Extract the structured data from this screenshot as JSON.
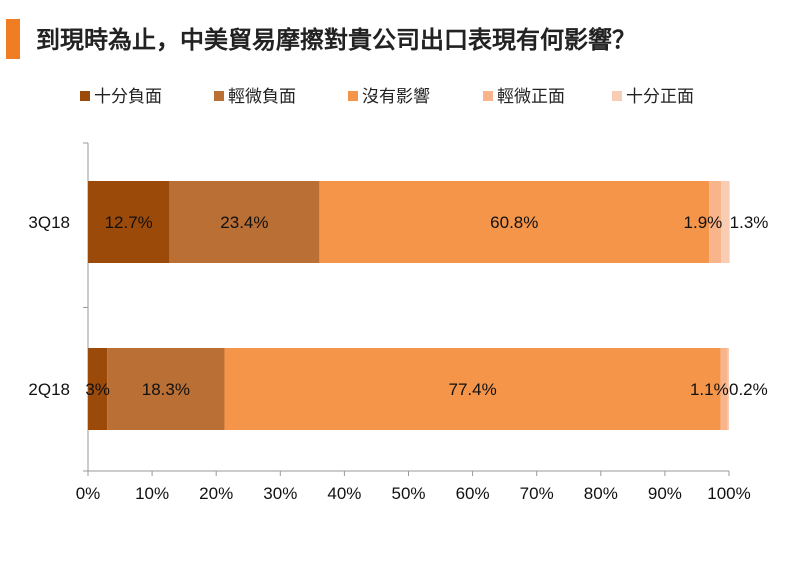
{
  "title": "到現時為止，中美貿易摩擦對貴公司出口表現有何影響？",
  "colors": {
    "accent": "#F07C24",
    "series": [
      "#9C4A0A",
      "#BA6F35",
      "#F5954A",
      "#F8B48A",
      "#F9CDB4"
    ]
  },
  "chart_data": {
    "type": "bar",
    "orientation": "horizontal",
    "stacked": true,
    "categories": [
      "3Q18",
      "2Q18"
    ],
    "series": [
      {
        "name": "十分負面",
        "values": [
          12.7,
          3.0
        ],
        "labels": [
          "12.7%",
          "3%"
        ]
      },
      {
        "name": "輕微負面",
        "values": [
          23.4,
          18.3
        ],
        "labels": [
          "23.4%",
          "18.3%"
        ]
      },
      {
        "name": "沒有影響",
        "values": [
          60.8,
          77.4
        ],
        "labels": [
          "60.8%",
          "77.4%"
        ]
      },
      {
        "name": "輕微正面",
        "values": [
          1.9,
          1.1
        ],
        "labels": [
          "1.9%",
          "1.1%"
        ]
      },
      {
        "name": "十分正面",
        "values": [
          1.3,
          0.2
        ],
        "labels": [
          "1.3%",
          "0.2%"
        ]
      }
    ],
    "xlim": [
      0,
      100
    ],
    "xticks": [
      "0%",
      "10%",
      "20%",
      "30%",
      "40%",
      "50%",
      "60%",
      "70%",
      "80%",
      "90%",
      "100%"
    ],
    "grid": false,
    "legend": "top"
  }
}
